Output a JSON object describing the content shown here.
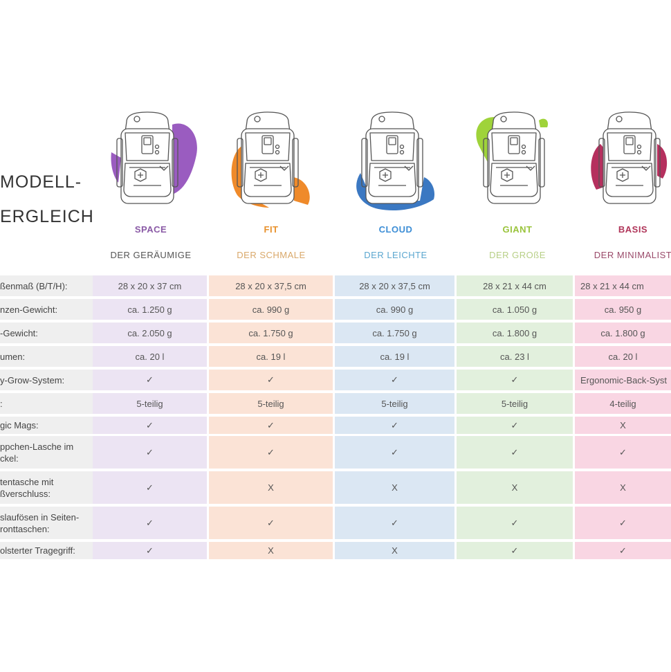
{
  "heading": {
    "line1": "MODELL-",
    "line2": "ERGLEICH"
  },
  "models": [
    {
      "name": "SPACE",
      "subtitle": "DER  GERÄUMIGE",
      "name_color": "#8a5aa6",
      "subtitle_color": "#555555",
      "blob_color": "#9a5cc0",
      "cell_color": "#ece4f3"
    },
    {
      "name": "FIT",
      "subtitle": "DER SCHMALE",
      "name_color": "#e8912c",
      "subtitle_color": "#d9a86a",
      "blob_color": "#ef8a2a",
      "cell_color": "#fbe3d6"
    },
    {
      "name": "CLOUD",
      "subtitle": "DER LEICHTE",
      "name_color": "#3d8ed6",
      "subtitle_color": "#5aa6cf",
      "blob_color": "#3b78c2",
      "cell_color": "#dbe7f3"
    },
    {
      "name": "GIANT",
      "subtitle": "DER GROßE",
      "name_color": "#9ac43c",
      "subtitle_color": "#b7cf86",
      "blob_color": "#9fd33a",
      "cell_color": "#e2f0dd"
    },
    {
      "name": "BASIS",
      "subtitle": "DER MINIMALIST",
      "name_color": "#b0365a",
      "subtitle_color": "#9a4a6a",
      "blob_color": "#b5305e",
      "cell_color": "#f9d6e3"
    }
  ],
  "rows": [
    {
      "label": [
        "ßenmaß (B/T/H):"
      ],
      "values": [
        "28 x 20 x 37 cm",
        "28 x 20 x 37,5 cm",
        "28 x 20 x 37,5 cm",
        "28 x 21 x 44 cm",
        "28 x 21 x 44 cm"
      ]
    },
    {
      "label": [
        "nzen-Gewicht:"
      ],
      "values": [
        "ca. 1.250 g",
        "ca. 990 g",
        "ca. 990 g",
        "ca. 1.050 g",
        "ca. 950 g"
      ]
    },
    {
      "label": [
        "-Gewicht:"
      ],
      "values": [
        "ca. 2.050 g",
        "ca. 1.750 g",
        "ca. 1.750 g",
        "ca. 1.800 g",
        "ca. 1.800 g"
      ]
    },
    {
      "label": [
        "umen:"
      ],
      "values": [
        "ca. 20 l",
        "ca. 19 l",
        "ca. 19 l",
        "ca. 23 l",
        "ca. 20 l"
      ]
    },
    {
      "label": [
        "y-Grow-System:"
      ],
      "values": [
        "✓",
        "✓",
        "✓",
        "✓",
        "Ergonomic-Back-Syst"
      ]
    },
    {
      "label": [
        ":"
      ],
      "values": [
        "5-teilig",
        "5-teilig",
        "5-teilig",
        "5-teilig",
        "4-teilig"
      ]
    },
    {
      "label": [
        "gic Mags:"
      ],
      "values": [
        "✓",
        "✓",
        "✓",
        "✓",
        "X"
      ]
    },
    {
      "label": [
        "ppchen-Lasche im",
        "ckel:"
      ],
      "values": [
        "✓",
        "✓",
        "✓",
        "✓",
        "✓"
      ]
    },
    {
      "label": [
        "tentasche mit",
        "ßverschluss:"
      ],
      "values": [
        "✓",
        "X",
        "X",
        "X",
        "X"
      ]
    },
    {
      "label": [
        "slaufösen in Seiten-",
        "ronttaschen:"
      ],
      "values": [
        "✓",
        "✓",
        "✓",
        "✓",
        "✓"
      ]
    },
    {
      "label": [
        "olsterter Tragegriff:"
      ],
      "values": [
        "✓",
        "X",
        "X",
        "✓",
        "✓"
      ]
    }
  ]
}
